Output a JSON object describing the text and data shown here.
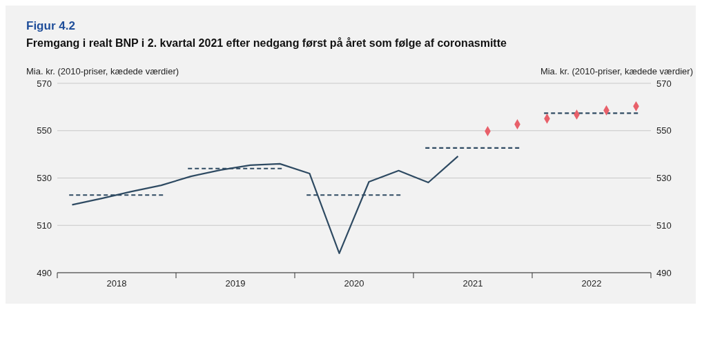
{
  "chart_data": {
    "type": "line",
    "title": "Figur 4.2",
    "subtitle": "Fremgang i realt BNP i 2. kvartal 2021 efter nedgang først på året som følge af coronasmitte",
    "ylabel": "Mia. kr. (2010-priser, kædede værdier)",
    "y2label": "Mia. kr. (2010-priser, kædede værdier)",
    "xlim": [
      2018,
      2023
    ],
    "xticks": [
      {
        "value": 2018,
        "label": null
      },
      {
        "value": 2018.5,
        "label": "2018"
      },
      {
        "value": 2019,
        "label": null
      },
      {
        "value": 2019.5,
        "label": "2019"
      },
      {
        "value": 2020,
        "label": null
      },
      {
        "value": 2020.5,
        "label": "2020"
      },
      {
        "value": 2021,
        "label": null
      },
      {
        "value": 2021.5,
        "label": "2021"
      },
      {
        "value": 2022,
        "label": null
      },
      {
        "value": 2022.5,
        "label": "2022"
      },
      {
        "value": 2023,
        "label": null
      }
    ],
    "ylim": [
      490,
      570
    ],
    "yticks": [
      490,
      510,
      530,
      550,
      570
    ],
    "y2lim": [
      490,
      570
    ],
    "y2ticks": [
      490,
      510,
      530,
      550,
      570
    ],
    "grid": "y",
    "series": [
      {
        "color": "#2e4a62",
        "line_style": "solid",
        "marker": "none",
        "x": [
          2018.125,
          2018.375,
          2018.625,
          2018.875,
          2019.125,
          2019.375,
          2019.625,
          2019.875,
          2020.125,
          2020.375,
          2020.625,
          2020.875,
          2021.125,
          2021.375
        ],
        "values": [
          518.7,
          521.4,
          524.3,
          526.9,
          530.7,
          533.4,
          535.4,
          536.0,
          531.9,
          498.2,
          528.4,
          533.1,
          528.1,
          539.2
        ]
      },
      {
        "type": "line",
        "color": "#2e4a62",
        "line_style": "dashed",
        "marker": "none",
        "x": [
          2018.1,
          2018.9
        ],
        "values": [
          522.8,
          522.8
        ]
      },
      {
        "type": "line",
        "color": "#2e4a62",
        "line_style": "dashed",
        "marker": "none",
        "x": [
          2019.1,
          2019.9
        ],
        "values": [
          534.0,
          534.0
        ]
      },
      {
        "type": "line",
        "color": "#2e4a62",
        "line_style": "dashed",
        "marker": "none",
        "x": [
          2020.1,
          2020.9
        ],
        "values": [
          522.8,
          522.8
        ]
      },
      {
        "type": "line",
        "color": "#2e4a62",
        "line_style": "dashed",
        "marker": "none",
        "x": [
          2021.1,
          2021.9
        ],
        "values": [
          542.7,
          542.7
        ]
      },
      {
        "type": "line",
        "color": "#2e4a62",
        "line_style": "dashed",
        "marker": "none",
        "x": [
          2022.1,
          2022.9
        ],
        "values": [
          557.4,
          557.4
        ]
      },
      {
        "type": "scatter",
        "color": "#e8606a",
        "marker": "diamond",
        "x": [
          2021.625,
          2021.875,
          2022.125,
          2022.375,
          2022.625,
          2022.875
        ],
        "values": [
          549.8,
          552.7,
          555.1,
          556.8,
          558.6,
          560.3
        ]
      }
    ]
  }
}
